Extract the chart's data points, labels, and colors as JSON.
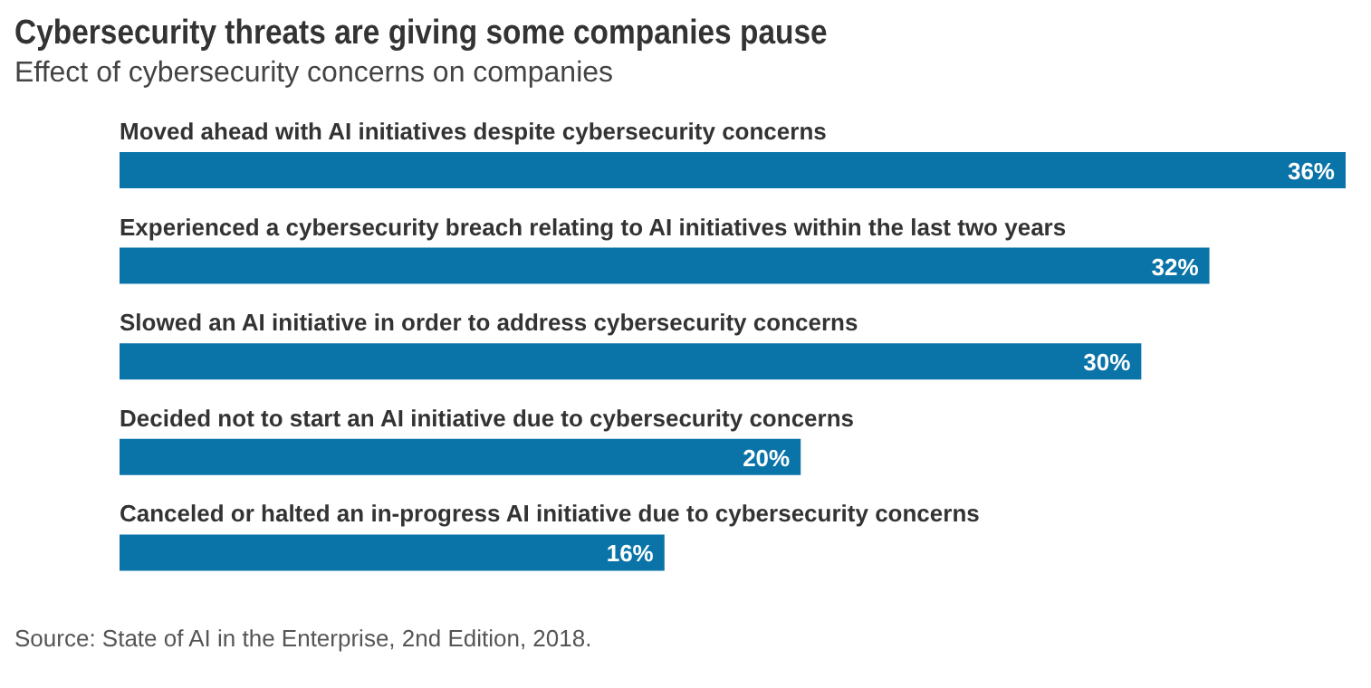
{
  "chart_data": {
    "type": "bar",
    "orientation": "horizontal",
    "title": "Cybersecurity threats are giving some companies pause",
    "subtitle": "Effect of cybersecurity concerns on companies",
    "categories": [
      "Moved ahead with AI initiatives despite cybersecurity concerns",
      "Experienced a cybersecurity breach relating to AI initiatives within the last two years",
      "Slowed an AI initiative in order to address cybersecurity concerns",
      "Decided not to start an AI initiative due to cybersecurity concerns",
      "Canceled or halted an in-progress AI initiative due to cybersecurity concerns"
    ],
    "values": [
      36,
      32,
      30,
      20,
      16
    ],
    "value_labels": [
      "36%",
      "32%",
      "30%",
      "20%",
      "16%"
    ],
    "color": "#0a74a8",
    "annotations": [
      "Source: State of AI in the Enterprise, 2nd Edition, 2018."
    ]
  }
}
